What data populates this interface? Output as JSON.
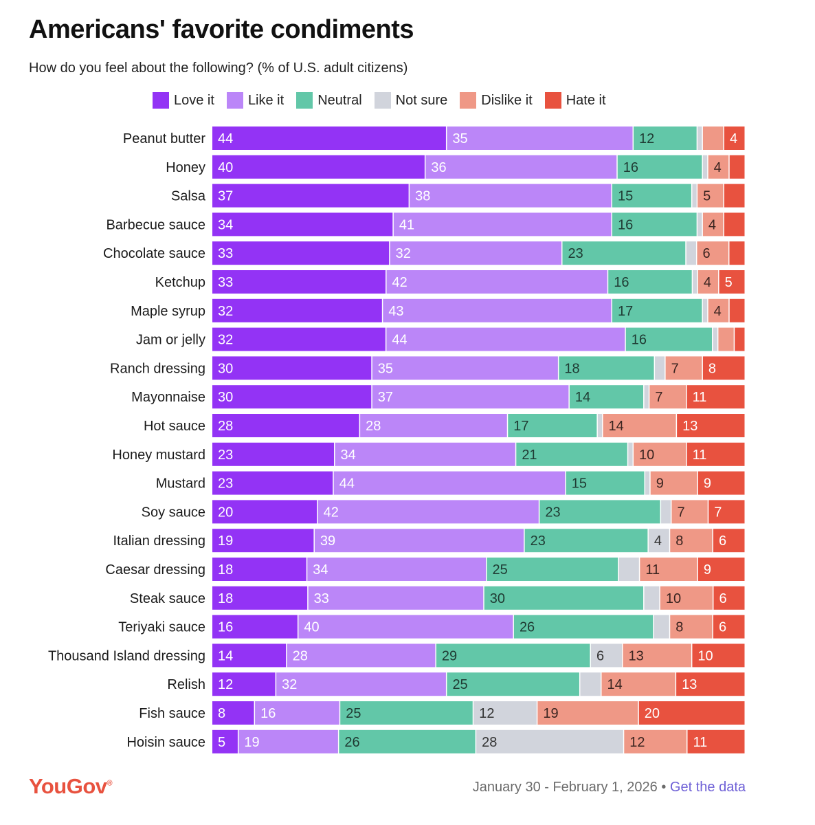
{
  "title": "Americans' favorite condiments",
  "subtitle": "How do you feel about the following? (% of U.S. adult citizens)",
  "colors": {
    "love": "#9333f5",
    "like": "#bb86f8",
    "neutral": "#62c7a8",
    "not_sure": "#d1d4dc",
    "dislike": "#ef9886",
    "hate": "#e8523f",
    "logo": "#e8523f",
    "link": "#6d5fd6"
  },
  "footer": {
    "logo": "YouGov",
    "logo_mark": "®",
    "date": "January 30 - February 1, 2026",
    "separator": "•",
    "link": "Get the data"
  },
  "chart_data": {
    "type": "bar",
    "orientation": "horizontal",
    "stacked": true,
    "legend_position": "top",
    "xlim": [
      0,
      100
    ],
    "categories": [
      "Peanut butter",
      "Honey",
      "Salsa",
      "Barbecue sauce",
      "Chocolate sauce",
      "Ketchup",
      "Maple syrup",
      "Jam or jelly",
      "Ranch dressing",
      "Mayonnaise",
      "Hot sauce",
      "Honey mustard",
      "Mustard",
      "Soy sauce",
      "Italian dressing",
      "Caesar dressing",
      "Steak sauce",
      "Teriyaki sauce",
      "Thousand Island dressing",
      "Relish",
      "Fish sauce",
      "Hoisin sauce"
    ],
    "series": [
      {
        "name": "Love it",
        "color": "#9333f5",
        "label_color": "#ffffff",
        "values": [
          44,
          40,
          37,
          34,
          33,
          33,
          32,
          32,
          30,
          30,
          28,
          23,
          23,
          20,
          19,
          18,
          18,
          16,
          14,
          12,
          8,
          5
        ],
        "labels": [
          "44",
          "40",
          "37",
          "34",
          "33",
          "33",
          "32",
          "32",
          "30",
          "30",
          "28",
          "23",
          "23",
          "20",
          "19",
          "18",
          "18",
          "16",
          "14",
          "12",
          "8",
          "5"
        ]
      },
      {
        "name": "Like it",
        "color": "#bb86f8",
        "label_color": "#ffffff",
        "values": [
          35,
          36,
          38,
          41,
          32,
          42,
          43,
          44,
          35,
          37,
          28,
          34,
          44,
          42,
          39,
          34,
          33,
          40,
          28,
          32,
          16,
          19
        ],
        "labels": [
          "35",
          "36",
          "38",
          "41",
          "32",
          "42",
          "43",
          "44",
          "35",
          "37",
          "28",
          "34",
          "44",
          "42",
          "39",
          "34",
          "33",
          "40",
          "28",
          "32",
          "16",
          "19"
        ]
      },
      {
        "name": "Neutral",
        "color": "#62c7a8",
        "label_color": "#1f3b33",
        "values": [
          12,
          16,
          15,
          16,
          23,
          16,
          17,
          16,
          18,
          14,
          17,
          21,
          15,
          23,
          23,
          25,
          30,
          26,
          29,
          25,
          25,
          26
        ],
        "labels": [
          "12",
          "16",
          "15",
          "16",
          "23",
          "16",
          "17",
          "16",
          "18",
          "14",
          "17",
          "21",
          "15",
          "23",
          "23",
          "25",
          "30",
          "26",
          "29",
          "25",
          "25",
          "26"
        ]
      },
      {
        "name": "Not sure",
        "color": "#d1d4dc",
        "label_color": "#333333",
        "values": [
          1,
          1,
          1,
          1,
          2,
          1,
          1,
          1,
          2,
          1,
          1,
          1,
          1,
          2,
          4,
          4,
          3,
          3,
          6,
          4,
          12,
          28
        ],
        "labels": [
          "",
          "",
          "",
          "",
          "",
          "",
          "",
          "",
          "",
          "",
          "",
          "",
          "",
          "",
          "4",
          "",
          "",
          "",
          "6",
          "",
          "12",
          "28"
        ]
      },
      {
        "name": "Dislike it",
        "color": "#ef9886",
        "label_color": "#3a2420",
        "values": [
          4,
          4,
          5,
          4,
          6,
          4,
          4,
          3,
          7,
          7,
          14,
          10,
          9,
          7,
          8,
          11,
          10,
          8,
          13,
          14,
          19,
          12
        ],
        "labels": [
          "",
          "4",
          "5",
          "4",
          "6",
          "4",
          "4",
          "",
          "7",
          "7",
          "14",
          "10",
          "9",
          "7",
          "8",
          "11",
          "10",
          "8",
          "13",
          "14",
          "19",
          "12"
        ]
      },
      {
        "name": "Hate it",
        "color": "#e8523f",
        "label_color": "#ffffff",
        "values": [
          4,
          3,
          4,
          4,
          3,
          5,
          3,
          2,
          8,
          11,
          13,
          11,
          9,
          7,
          6,
          9,
          6,
          6,
          10,
          13,
          20,
          11
        ],
        "labels": [
          "4",
          "",
          "",
          "",
          "",
          "5",
          "",
          "",
          "8",
          "11",
          "13",
          "11",
          "9",
          "7",
          "6",
          "9",
          "6",
          "6",
          "10",
          "13",
          "20",
          "11"
        ]
      }
    ]
  }
}
